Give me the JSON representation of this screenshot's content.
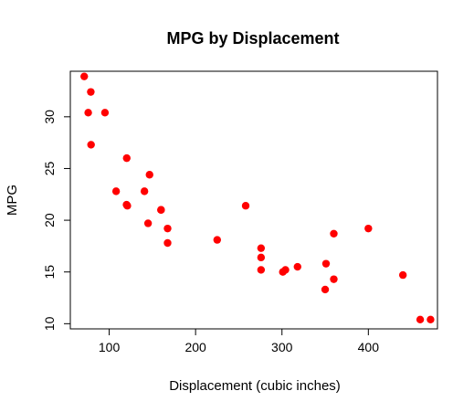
{
  "chart_data": {
    "type": "scatter",
    "title": "MPG by Displacement",
    "xlabel": "Displacement (cubic inches)",
    "ylabel": "MPG",
    "xlim": [
      55,
      480
    ],
    "ylim": [
      9.5,
      34.4
    ],
    "x_ticks": [
      100,
      200,
      300,
      400
    ],
    "y_ticks": [
      10,
      15,
      20,
      25,
      30
    ],
    "grid": false,
    "point_color": "#ff0000",
    "points": [
      {
        "x": 71.1,
        "y": 33.9
      },
      {
        "x": 78.7,
        "y": 32.4
      },
      {
        "x": 75.7,
        "y": 30.4
      },
      {
        "x": 95.1,
        "y": 30.4
      },
      {
        "x": 79.0,
        "y": 27.3
      },
      {
        "x": 120.3,
        "y": 26.0
      },
      {
        "x": 146.7,
        "y": 24.4
      },
      {
        "x": 108.0,
        "y": 22.8
      },
      {
        "x": 140.8,
        "y": 22.8
      },
      {
        "x": 120.1,
        "y": 21.5
      },
      {
        "x": 121.0,
        "y": 21.4
      },
      {
        "x": 160.0,
        "y": 21.0
      },
      {
        "x": 160.0,
        "y": 21.0
      },
      {
        "x": 258.0,
        "y": 21.4
      },
      {
        "x": 145.0,
        "y": 19.7
      },
      {
        "x": 167.6,
        "y": 19.2
      },
      {
        "x": 400.0,
        "y": 19.2
      },
      {
        "x": 360.0,
        "y": 18.7
      },
      {
        "x": 225.0,
        "y": 18.1
      },
      {
        "x": 167.6,
        "y": 17.8
      },
      {
        "x": 275.8,
        "y": 17.3
      },
      {
        "x": 275.8,
        "y": 16.4
      },
      {
        "x": 351.0,
        "y": 15.8
      },
      {
        "x": 318.0,
        "y": 15.5
      },
      {
        "x": 275.8,
        "y": 15.2
      },
      {
        "x": 304.0,
        "y": 15.2
      },
      {
        "x": 301.0,
        "y": 15.0
      },
      {
        "x": 440.0,
        "y": 14.7
      },
      {
        "x": 360.0,
        "y": 14.3
      },
      {
        "x": 350.0,
        "y": 13.3
      },
      {
        "x": 460.0,
        "y": 10.4
      },
      {
        "x": 472.0,
        "y": 10.4
      }
    ]
  }
}
